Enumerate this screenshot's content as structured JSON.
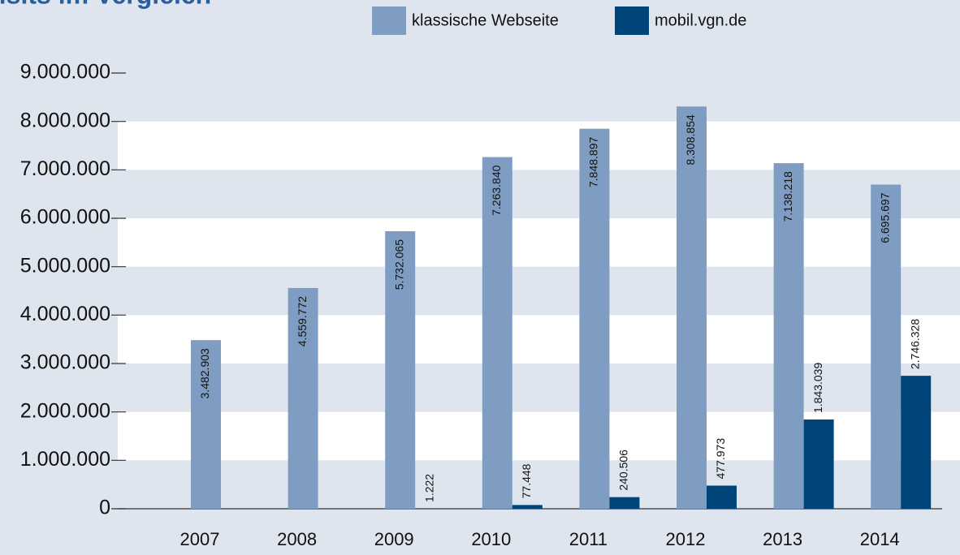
{
  "chart_data": {
    "type": "bar",
    "title": "Visits im Vergleich",
    "categories": [
      "2007",
      "2008",
      "2009",
      "2010",
      "2011",
      "2012",
      "2013",
      "2014"
    ],
    "series": [
      {
        "name": "klassische Webseite",
        "color": "#7f9dc2",
        "values": [
          3482903,
          4559772,
          5732065,
          7263840,
          7848897,
          8308854,
          7138218,
          6695697
        ],
        "value_labels": [
          "3.482.903",
          "4.559.772",
          "5.732.065",
          "7.263.840",
          "7.848.897",
          "8.308.854",
          "7.138.218",
          "6.695.697"
        ]
      },
      {
        "name": "mobil.vgn.de",
        "color": "#00457a",
        "values": [
          null,
          null,
          1222,
          77448,
          240506,
          477973,
          1843039,
          2746328
        ],
        "value_labels": [
          null,
          null,
          "1.222",
          "77.448",
          "240.506",
          "477.973",
          "1.843.039",
          "2.746.328"
        ]
      }
    ],
    "ylim": [
      0,
      9000000
    ],
    "yticks": [
      0,
      {
        "value": 1000000,
        "label": "1.000.000"
      },
      {
        "value": 2000000,
        "label": "2.000.000"
      },
      {
        "value": 3000000,
        "label": "3.000.000"
      },
      {
        "value": 4000000,
        "label": "4.000.000"
      },
      {
        "value": 5000000,
        "label": "5.000.000"
      },
      {
        "value": 6000000,
        "label": "6.000.000"
      },
      {
        "value": 7000000,
        "label": "7.000.000"
      },
      {
        "value": 8000000,
        "label": "8.000.000"
      },
      {
        "value": 9000000,
        "label": "9.000.000"
      }
    ],
    "grid": true
  }
}
